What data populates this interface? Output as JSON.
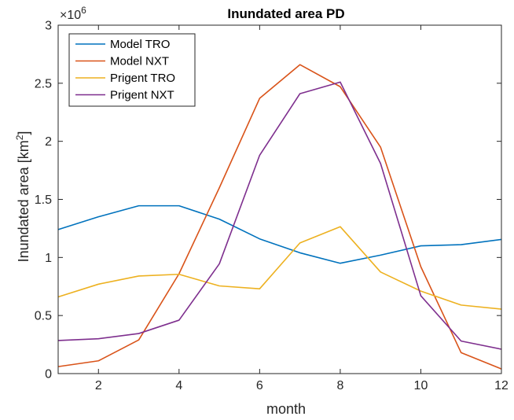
{
  "chart_data": {
    "type": "line",
    "title": "Inundated area PD",
    "xlabel": "month",
    "ylabel": "Inundated area [km",
    "ylabel_sup": "2",
    "ylabel_suffix": "]",
    "y_multiplier_base": "×10",
    "y_multiplier_exp": "6",
    "xlim": [
      1,
      12
    ],
    "ylim": [
      0,
      3
    ],
    "xticks": [
      2,
      4,
      6,
      8,
      10,
      12
    ],
    "xtick_labels": [
      "2",
      "4",
      "6",
      "8",
      "10",
      "12"
    ],
    "yticks": [
      0,
      0.5,
      1,
      1.5,
      2,
      2.5,
      3
    ],
    "ytick_labels": [
      "0",
      "0.5",
      "1",
      "1.5",
      "2",
      "2.5",
      "3"
    ],
    "grid": false,
    "legend_position": "top-left",
    "x": [
      1,
      2,
      3,
      4,
      5,
      6,
      7,
      8,
      9,
      10,
      11,
      12
    ],
    "series": [
      {
        "name": "Model TRO",
        "color": "#0072BD",
        "values": [
          1.24,
          1.35,
          1.445,
          1.445,
          1.33,
          1.16,
          1.04,
          0.95,
          1.02,
          1.1,
          1.11,
          1.155
        ]
      },
      {
        "name": "Model NXT",
        "color": "#D95319",
        "values": [
          0.06,
          0.11,
          0.29,
          0.86,
          1.6,
          2.37,
          2.66,
          2.47,
          1.95,
          0.92,
          0.18,
          0.04
        ]
      },
      {
        "name": "Prigent TRO",
        "color": "#EDB120",
        "values": [
          0.66,
          0.77,
          0.84,
          0.855,
          0.755,
          0.73,
          1.125,
          1.265,
          0.875,
          0.71,
          0.59,
          0.555
        ]
      },
      {
        "name": "Prigent NXT",
        "color": "#7E2F8E",
        "values": [
          0.285,
          0.3,
          0.345,
          0.46,
          0.945,
          1.88,
          2.41,
          2.51,
          1.81,
          0.67,
          0.28,
          0.21
        ]
      }
    ]
  }
}
